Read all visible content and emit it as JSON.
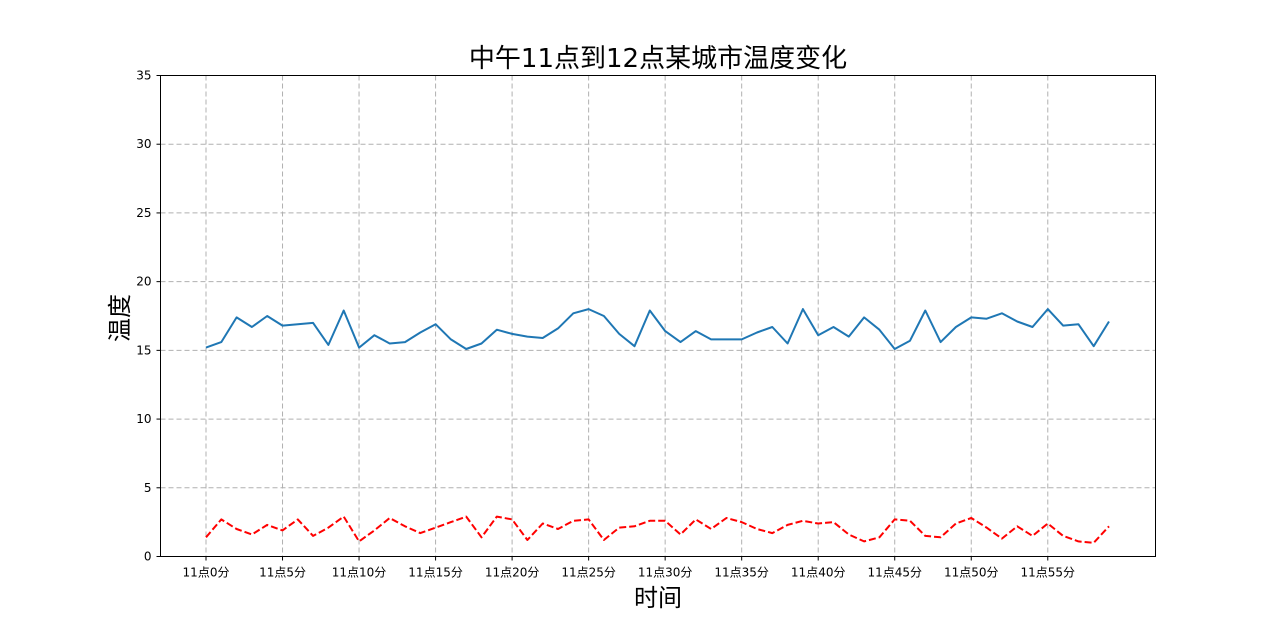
{
  "chart_data": {
    "type": "line",
    "title": "中午11点到12点某城市温度变化",
    "xlabel": "时间",
    "ylabel": "温度",
    "ylim": [
      0,
      35
    ],
    "yticks": [
      0,
      5,
      10,
      15,
      20,
      25,
      30,
      35
    ],
    "x": [
      0,
      1,
      2,
      3,
      4,
      5,
      6,
      7,
      8,
      9,
      10,
      11,
      12,
      13,
      14,
      15,
      16,
      17,
      18,
      19,
      20,
      21,
      22,
      23,
      24,
      25,
      26,
      27,
      28,
      29,
      30,
      31,
      32,
      33,
      34,
      35,
      36,
      37,
      38,
      39,
      40,
      41,
      42,
      43,
      44,
      45,
      46,
      47,
      48,
      49,
      50,
      51,
      52,
      53,
      54,
      55,
      56,
      57,
      58,
      59
    ],
    "xticks": [
      0,
      5,
      10,
      15,
      20,
      25,
      30,
      35,
      40,
      45,
      50,
      55
    ],
    "xtick_labels": [
      "11点0分",
      "11点5分",
      "11点10分",
      "11点15分",
      "11点20分",
      "11点25分",
      "11点30分",
      "11点35分",
      "11点40分",
      "11点45分",
      "11点50分",
      "11点55分"
    ],
    "grid": true,
    "colors": {
      "series1": "#1f77b4",
      "series2": "#ff0000",
      "grid": "#b0b0b0"
    },
    "series": [
      {
        "style": "solid",
        "values": [
          15.2,
          15.6,
          17.4,
          16.7,
          17.5,
          16.8,
          16.9,
          17.0,
          15.4,
          17.9,
          15.2,
          16.1,
          15.5,
          15.6,
          16.3,
          16.9,
          15.8,
          15.1,
          15.5,
          16.5,
          16.2,
          16.0,
          15.9,
          16.6,
          17.7,
          18.0,
          17.5,
          16.2,
          15.3,
          17.9,
          16.4,
          15.6,
          16.4,
          15.8,
          15.8,
          15.8,
          16.3,
          16.7,
          15.5,
          18.0,
          16.1,
          16.7,
          16.0,
          17.4,
          16.5,
          15.1,
          15.7,
          17.9,
          15.6,
          16.7,
          17.4,
          17.3,
          17.7,
          17.1,
          16.7,
          18.0,
          16.8,
          16.9,
          15.3,
          17.1
        ]
      },
      {
        "style": "dashed",
        "values": [
          1.4,
          2.7,
          2.0,
          1.6,
          2.3,
          1.9,
          2.7,
          1.5,
          2.1,
          2.9,
          1.1,
          1.9,
          2.8,
          2.2,
          1.7,
          2.1,
          2.5,
          2.9,
          1.4,
          2.9,
          2.7,
          1.2,
          2.4,
          2.0,
          2.6,
          2.7,
          1.2,
          2.1,
          2.2,
          2.6,
          2.6,
          1.6,
          2.7,
          2.0,
          2.8,
          2.5,
          2.0,
          1.7,
          2.3,
          2.6,
          2.4,
          2.5,
          1.6,
          1.1,
          1.4,
          2.7,
          2.6,
          1.5,
          1.4,
          2.4,
          2.8,
          2.1,
          1.3,
          2.2,
          1.5,
          2.4,
          1.5,
          1.1,
          1.0,
          2.2
        ]
      }
    ]
  }
}
